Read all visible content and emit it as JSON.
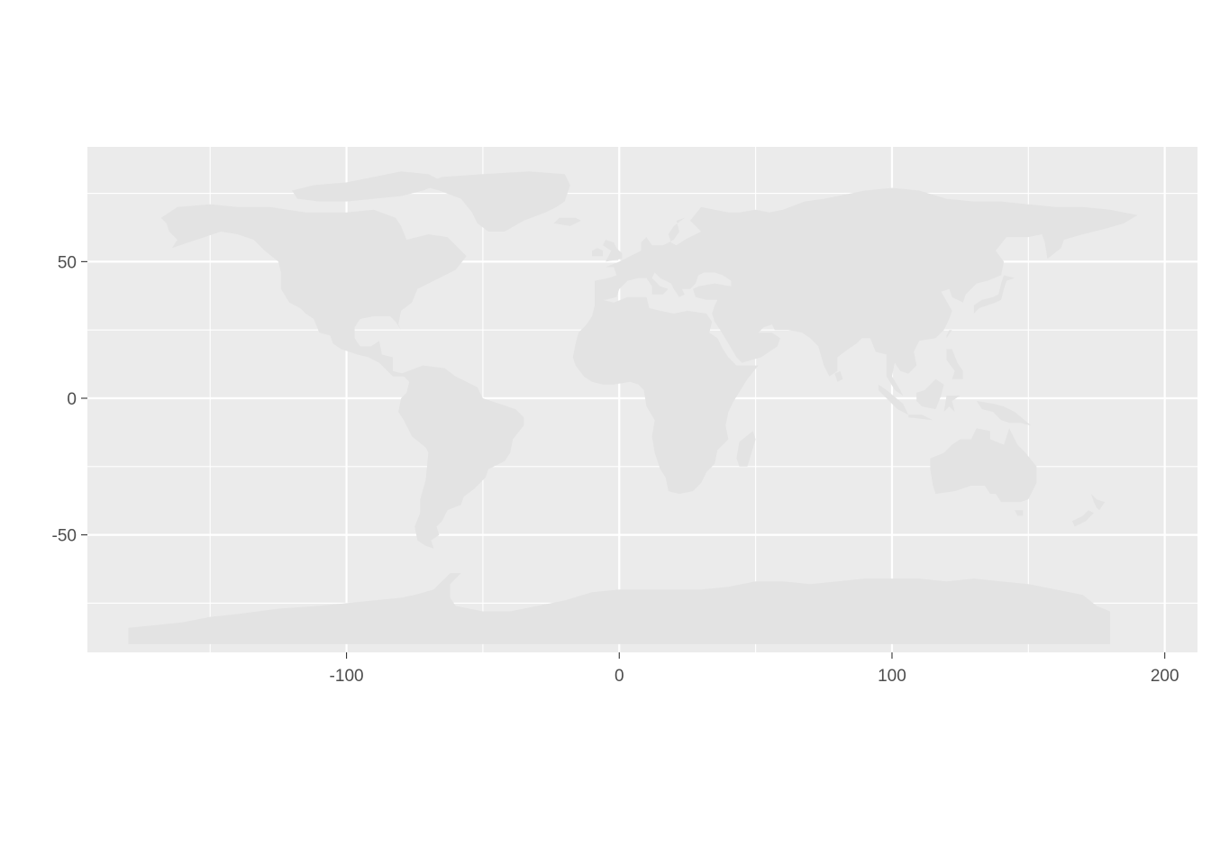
{
  "chart_data": {
    "type": "map",
    "title": "",
    "xlabel": "",
    "ylabel": "",
    "xlim": [
      -195,
      212
    ],
    "ylim": [
      -93,
      92
    ],
    "x_ticks": [
      -100,
      0,
      100,
      200
    ],
    "x_tick_labels": [
      "-100",
      "0",
      "100",
      "200"
    ],
    "y_ticks": [
      50,
      0,
      -50
    ],
    "y_tick_labels": [
      "50",
      "0",
      "-50"
    ],
    "x_minor_grid": [
      -150,
      -50,
      50,
      150
    ],
    "y_minor_grid": [
      75,
      25,
      -25,
      -75
    ],
    "grid": true,
    "legend": "none",
    "layer": "world country polygons (longitude/latitude)",
    "colors": {
      "panel_background": "#ebebeb",
      "land_fill": "#e3e3e3",
      "grid_major": "#ffffff",
      "tick_label": "#4d4d4d"
    }
  }
}
